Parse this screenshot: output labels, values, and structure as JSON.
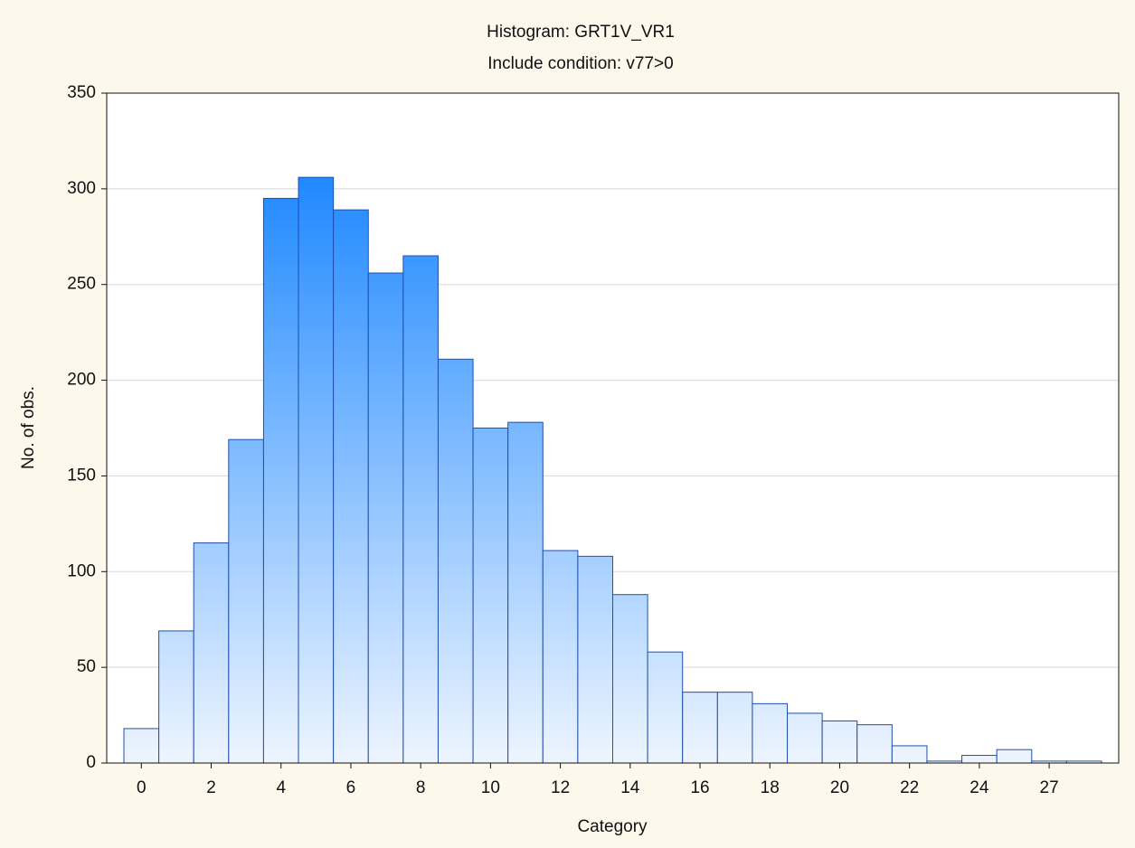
{
  "chart_data": {
    "type": "bar",
    "title": "Histogram: GRT1V_VR1",
    "subtitle": "Include condition: v77>0",
    "x_label": "Category",
    "y_label": "No. of obs.",
    "categories": [
      "0",
      null,
      "2",
      null,
      "4",
      null,
      "6",
      null,
      "8",
      null,
      "10",
      null,
      "12",
      null,
      "14",
      null,
      "16",
      null,
      "18",
      null,
      "20",
      null,
      "22",
      null,
      "24",
      null,
      "27",
      null
    ],
    "values": [
      18,
      69,
      115,
      169,
      295,
      306,
      289,
      256,
      265,
      211,
      175,
      178,
      111,
      108,
      88,
      58,
      37,
      37,
      31,
      26,
      22,
      20,
      9,
      1,
      4,
      7,
      1,
      1
    ],
    "color": "#1e88ff",
    "edge_color": "#1f4fb0",
    "ylim": [
      0,
      350
    ],
    "yticks": [
      0,
      50,
      100,
      150,
      200,
      250,
      300,
      350
    ],
    "grid": true
  }
}
